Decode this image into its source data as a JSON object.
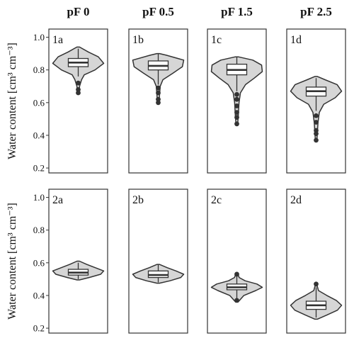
{
  "chart_data": {
    "type": "violin",
    "column_titles": [
      "pF 0",
      "pF 0.5",
      "pF 1.5",
      "pF 2.5"
    ],
    "ylabel": "Water content [cm³ cm⁻³]",
    "ylim": [
      0.17,
      1.05
    ],
    "yticks": [
      "0.2",
      "0.4",
      "0.6",
      "0.8",
      "1.0"
    ],
    "rows": [
      {
        "panels": [
          {
            "label": "1a",
            "box": {
              "q1": 0.82,
              "median": 0.845,
              "q3": 0.87,
              "whisker_low": 0.76,
              "whisker_high": 0.93
            },
            "outliers": [
              0.72,
              0.68,
              0.66
            ],
            "violin": [
              [
                0.65,
                0.01
              ],
              [
                0.7,
                0.02
              ],
              [
                0.74,
                0.05
              ],
              [
                0.77,
                0.09
              ],
              [
                0.8,
                0.25
              ],
              [
                0.84,
                0.38
              ],
              [
                0.88,
                0.3
              ],
              [
                0.91,
                0.15
              ],
              [
                0.94,
                0.02
              ]
            ]
          },
          {
            "label": "1b",
            "box": {
              "q1": 0.8,
              "median": 0.825,
              "q3": 0.855,
              "whisker_low": 0.71,
              "whisker_high": 0.9
            },
            "outliers": [
              0.69,
              0.66,
              0.62,
              0.6
            ],
            "violin": [
              [
                0.59,
                0.01
              ],
              [
                0.65,
                0.02
              ],
              [
                0.7,
                0.03
              ],
              [
                0.74,
                0.07
              ],
              [
                0.78,
                0.22
              ],
              [
                0.82,
                0.36
              ],
              [
                0.86,
                0.38
              ],
              [
                0.89,
                0.12
              ],
              [
                0.9,
                0.02
              ]
            ]
          },
          {
            "label": "1c",
            "box": {
              "q1": 0.77,
              "median": 0.8,
              "q3": 0.835,
              "whisker_low": 0.67,
              "whisker_high": 0.88
            },
            "outliers": [
              0.65,
              0.62,
              0.58,
              0.54,
              0.51,
              0.47
            ],
            "violin": [
              [
                0.46,
                0.01
              ],
              [
                0.52,
                0.02
              ],
              [
                0.6,
                0.03
              ],
              [
                0.66,
                0.05
              ],
              [
                0.71,
                0.12
              ],
              [
                0.75,
                0.24
              ],
              [
                0.79,
                0.35
              ],
              [
                0.83,
                0.34
              ],
              [
                0.86,
                0.22
              ],
              [
                0.88,
                0.02
              ]
            ]
          },
          {
            "label": "1d",
            "box": {
              "q1": 0.64,
              "median": 0.67,
              "q3": 0.695,
              "whisker_low": 0.55,
              "whisker_high": 0.75
            },
            "outliers": [
              0.52,
              0.48,
              0.43,
              0.41,
              0.37
            ],
            "violin": [
              [
                0.36,
                0.01
              ],
              [
                0.42,
                0.02
              ],
              [
                0.48,
                0.03
              ],
              [
                0.54,
                0.05
              ],
              [
                0.59,
                0.12
              ],
              [
                0.63,
                0.3
              ],
              [
                0.67,
                0.4
              ],
              [
                0.71,
                0.33
              ],
              [
                0.74,
                0.14
              ],
              [
                0.76,
                0.02
              ]
            ]
          }
        ]
      },
      {
        "panels": [
          {
            "label": "2a",
            "box": {
              "q1": 0.525,
              "median": 0.54,
              "q3": 0.56,
              "whisker_low": 0.5,
              "whisker_high": 0.6
            },
            "outliers": [],
            "violin": [
              [
                0.495,
                0.02
              ],
              [
                0.51,
                0.18
              ],
              [
                0.53,
                0.37
              ],
              [
                0.55,
                0.42
              ],
              [
                0.57,
                0.28
              ],
              [
                0.59,
                0.14
              ],
              [
                0.61,
                0.02
              ]
            ]
          },
          {
            "label": "2b",
            "box": {
              "q1": 0.51,
              "median": 0.525,
              "q3": 0.55,
              "whisker_low": 0.48,
              "whisker_high": 0.59
            },
            "outliers": [],
            "violin": [
              [
                0.475,
                0.02
              ],
              [
                0.49,
                0.2
              ],
              [
                0.51,
                0.38
              ],
              [
                0.53,
                0.43
              ],
              [
                0.55,
                0.3
              ],
              [
                0.57,
                0.15
              ],
              [
                0.59,
                0.02
              ]
            ]
          },
          {
            "label": "2c",
            "box": {
              "q1": 0.435,
              "median": 0.45,
              "q3": 0.47,
              "whisker_low": 0.38,
              "whisker_high": 0.52
            },
            "outliers": [
              0.53,
              0.37
            ],
            "violin": [
              [
                0.36,
                0.02
              ],
              [
                0.4,
                0.12
              ],
              [
                0.43,
                0.32
              ],
              [
                0.45,
                0.43
              ],
              [
                0.47,
                0.34
              ],
              [
                0.49,
                0.14
              ],
              [
                0.51,
                0.04
              ],
              [
                0.54,
                0.01
              ]
            ]
          },
          {
            "label": "2d",
            "box": {
              "q1": 0.315,
              "median": 0.34,
              "q3": 0.365,
              "whisker_low": 0.265,
              "whisker_high": 0.45
            },
            "outliers": [
              0.47
            ],
            "violin": [
              [
                0.255,
                0.02
              ],
              [
                0.28,
                0.18
              ],
              [
                0.31,
                0.36
              ],
              [
                0.34,
                0.43
              ],
              [
                0.37,
                0.34
              ],
              [
                0.4,
                0.18
              ],
              [
                0.43,
                0.04
              ],
              [
                0.47,
                0.01
              ]
            ]
          }
        ]
      }
    ],
    "colors": {
      "violin_fill": "#d6d6d6",
      "violin_stroke": "#333333",
      "box_fill": "#ffffff",
      "box_stroke": "#333333",
      "outlier": "#333333"
    }
  }
}
